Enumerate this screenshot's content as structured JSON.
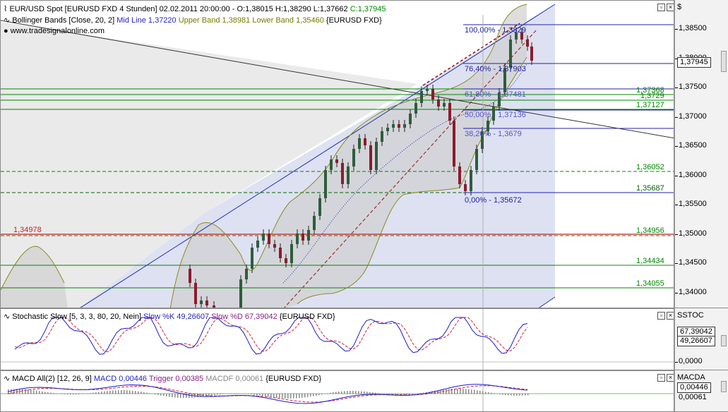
{
  "main_header": {
    "line1": "EUR/USD Spot [EURUSD FXD  4 Stunden] 02.02.2011 20:00:00 - O:1,38015 H:1,38290 L:1,37662",
    "line1_close": "C:1,37945",
    "line2_prefix": "Bollinger Bands [Close, 20, 2]",
    "line2_mid": "Mid Line 1,37220",
    "line2_upper": "Upper Band 1,38981",
    "line2_lower": "Lower Band 1,35460",
    "line2_suffix": "{EURUSD FXD}",
    "line3": "www.tradesignalonline.com"
  },
  "stoch_header": {
    "prefix": "Stochastic Slow [5, 3, 3, 80, 20, Nein]",
    "k": "Slow %K 49,26607",
    "d": "Slow %D 67,39042",
    "suffix": "{EURUSD FXD}"
  },
  "macd_header": {
    "prefix": "MACD All(2) [12, 26, 9]",
    "macd": "MACD 0,00446",
    "trigger": "Trigger 0,00385",
    "macdf": "MACDF 0,00061",
    "suffix": "{EURUSD FXD}"
  },
  "axis_main": {
    "title": "$",
    "ticks": [
      "1,38500",
      "1,38000",
      "1,37500",
      "1,37000",
      "1,36500",
      "1,36000",
      "1,35500",
      "1,35000",
      "1,34500",
      "1,34000"
    ],
    "current_price": "1,37945"
  },
  "axis_stoch": {
    "title": "SSTOC",
    "d_value": "67,39042",
    "k_value": "49,26607",
    "zero": "0,0000"
  },
  "axis_macd": {
    "title": "MACDA",
    "macd_value": "0,00446",
    "other_value": "0,00061"
  },
  "fib_labels": {
    "f100": "100,00% - 1,3829",
    "f764": "76,40% - 1,37903",
    "f618": "61,80% - 1,37481",
    "f500": "50,00% - 1,37136",
    "f382": "38,20% - 1,3679",
    "f0": "0,00% - 1,35672"
  },
  "level_labels": {
    "l37368": "1,37368",
    "l3729": "1,3729",
    "l37127": "1,37127",
    "l36052": "1,36052",
    "l35687": "1,35687",
    "l34956": "1,34956",
    "l34434": "1,34434",
    "l34055": "1,34055",
    "l34978": "1,34978"
  },
  "colors": {
    "bollinger": "#8a8a20",
    "fib": "#2222aa",
    "support": "#008800",
    "red_level": "#cc2222",
    "trend": "#2233aa",
    "up_candle": "#2e5d3a",
    "down_candle": "#8b1c2c",
    "stoch_k": "#1a1acc",
    "stoch_d": "#cc2244"
  }
}
